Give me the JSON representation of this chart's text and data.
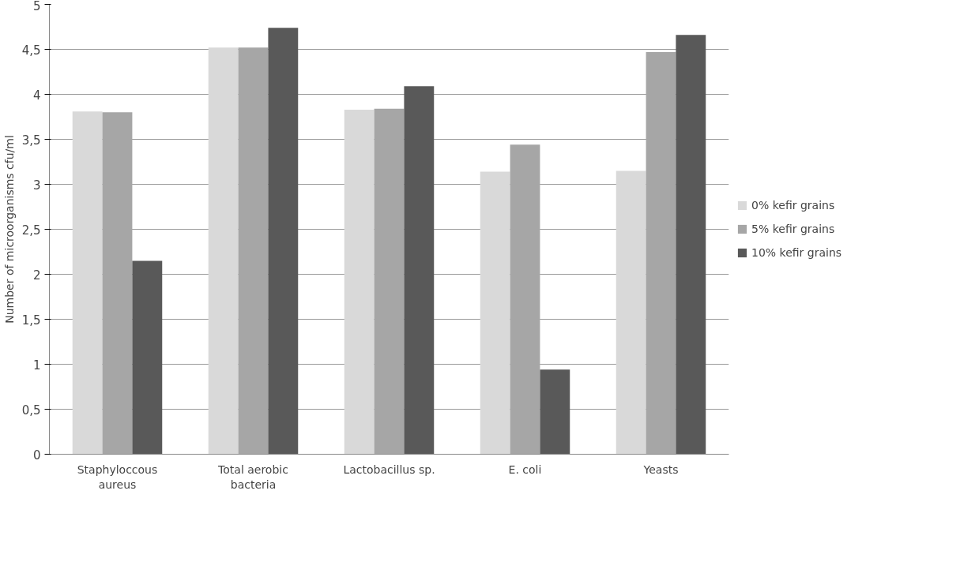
{
  "chart_data": {
    "type": "bar",
    "ylabel": "Number of microorganisms cfu/ml",
    "categories": [
      "Staphyloccous aureus",
      "Total aerobic bacteria",
      "Lactobacillus sp.",
      "E. coli",
      "Yeasts"
    ],
    "series": [
      {
        "name": "0% kefir grains",
        "color": "#d9d9d9",
        "values": [
          3.81,
          4.52,
          3.83,
          3.14,
          3.15
        ]
      },
      {
        "name": "5% kefir grains",
        "color": "#a6a6a6",
        "values": [
          3.8,
          4.52,
          3.84,
          3.44,
          4.47
        ]
      },
      {
        "name": "10% kefir grains",
        "color": "#595959",
        "values": [
          2.15,
          4.74,
          4.09,
          0.94,
          4.66
        ]
      }
    ],
    "ylim": [
      0,
      5
    ],
    "yticks": [
      0,
      {
        "value": 0.5,
        "label": "0,5"
      },
      1,
      {
        "value": 1.5,
        "label": "1,5"
      },
      2,
      {
        "value": 2.5,
        "label": "2,5"
      },
      3,
      {
        "value": 3.5,
        "label": "3,5"
      },
      4,
      {
        "value": 4.5,
        "label": "4,5"
      },
      5
    ],
    "grid": "y",
    "legend": "right"
  }
}
